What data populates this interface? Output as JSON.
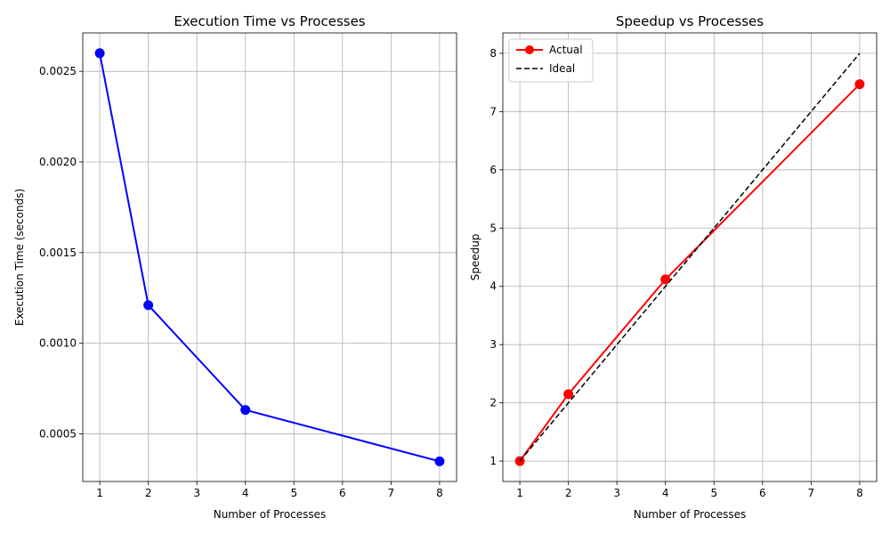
{
  "chart_data": [
    {
      "type": "line",
      "title": "Execution Time vs Processes",
      "xlabel": "Number of Processes",
      "ylabel": "Execution Time (seconds)",
      "xlim": [
        0.65,
        8.35
      ],
      "ylim": [
        0.000237,
        0.002712
      ],
      "xticks": [
        1,
        2,
        3,
        4,
        5,
        6,
        7,
        8
      ],
      "xtick_labels": [
        "1",
        "2",
        "3",
        "4",
        "5",
        "6",
        "7",
        "8"
      ],
      "yticks": [
        0.0005,
        0.001,
        0.0015,
        0.002,
        0.0025
      ],
      "ytick_labels": [
        "0.0005",
        "0.0010",
        "0.0015",
        "0.0020",
        "0.0025"
      ],
      "grid": true,
      "series": [
        {
          "x": [
            1,
            2,
            4,
            8
          ],
          "values": [
            0.0026,
            0.00121,
            0.000632,
            0.000348
          ],
          "color": "#0000ff",
          "marker": "circle",
          "linestyle": "solid"
        }
      ]
    },
    {
      "type": "line",
      "title": "Speedup vs Processes",
      "xlabel": "Number of Processes",
      "ylabel": "Speedup",
      "xlim": [
        0.65,
        8.35
      ],
      "ylim": [
        0.65,
        8.35
      ],
      "xticks": [
        1,
        2,
        3,
        4,
        5,
        6,
        7,
        8
      ],
      "xtick_labels": [
        "1",
        "2",
        "3",
        "4",
        "5",
        "6",
        "7",
        "8"
      ],
      "yticks": [
        1,
        2,
        3,
        4,
        5,
        6,
        7,
        8
      ],
      "ytick_labels": [
        "1",
        "2",
        "3",
        "4",
        "5",
        "6",
        "7",
        "8"
      ],
      "grid": true,
      "legend": "top-left",
      "series": [
        {
          "name": "Actual",
          "x": [
            1,
            2,
            4,
            8
          ],
          "values": [
            1.0,
            2.15,
            4.12,
            7.47
          ],
          "color": "#ff0000",
          "marker": "circle",
          "linestyle": "solid"
        },
        {
          "name": "Ideal",
          "x": [
            1,
            2,
            4,
            8
          ],
          "values": [
            1,
            2,
            4,
            8
          ],
          "color": "#000000",
          "marker": "none",
          "linestyle": "dashed"
        }
      ]
    }
  ]
}
